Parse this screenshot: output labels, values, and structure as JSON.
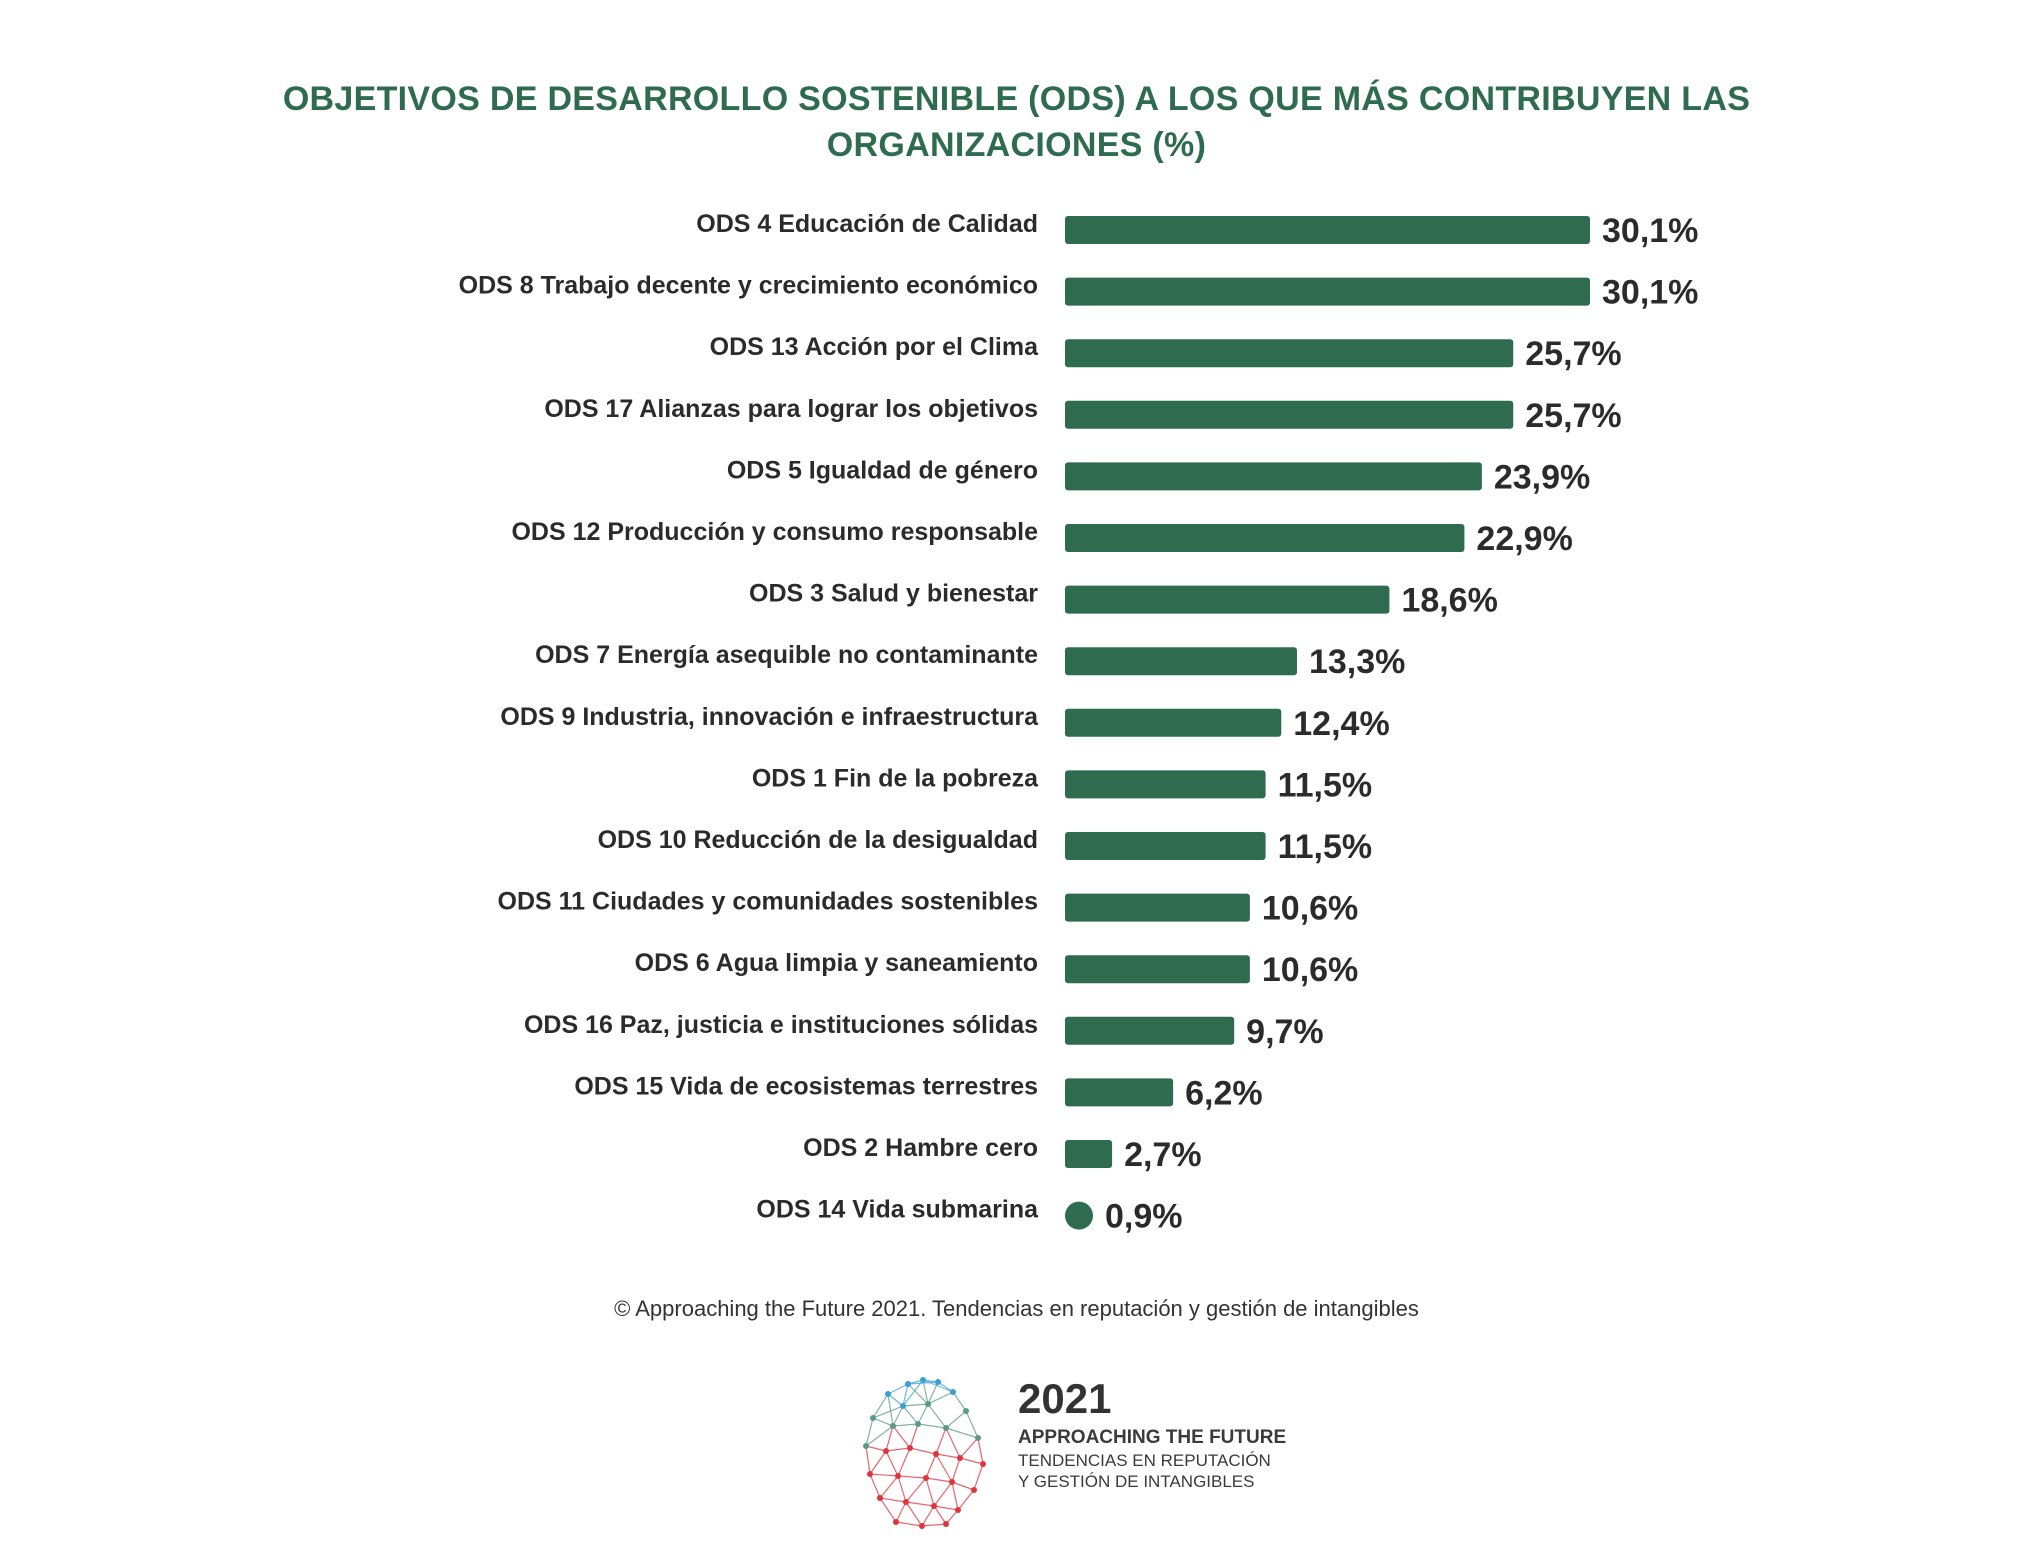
{
  "title_lines": [
    "OBJETIVOS DE DESARROLLO SOSTENIBLE (ODS) A LOS QUE MÁS CONTRIBUYEN LAS",
    "ORGANIZACIONES (%)"
  ],
  "chart_data": {
    "type": "bar",
    "orientation": "horizontal",
    "title": "OBJETIVOS DE DESARROLLO SOSTENIBLE (ODS) A LOS QUE MÁS CONTRIBUYEN LAS ORGANIZACIONES (%)",
    "categories": [
      "ODS 4 Educación de Calidad",
      "ODS 8 Trabajo decente y crecimiento económico",
      "ODS 13 Acción por el Clima",
      "ODS 17 Alianzas para lograr los objetivos",
      "ODS 5 Igualdad de género",
      "ODS 12 Producción y consumo responsable",
      "ODS 3 Salud y bienestar",
      "ODS 7 Energía asequible no contaminante",
      "ODS 9 Industria, innovación e infraestructura",
      "ODS 1 Fin de la pobreza",
      "ODS 10 Reducción de la desigualdad",
      "ODS 11 Ciudades y comunidades sostenibles",
      "ODS 6 Agua limpia y saneamiento",
      "ODS 16 Paz, justicia e instituciones sólidas",
      "ODS 15 Vida de ecosistemas terrestres",
      "ODS 2 Hambre cero",
      "ODS 14 Vida submarina"
    ],
    "values": [
      30.1,
      30.1,
      25.7,
      25.7,
      23.9,
      22.9,
      18.6,
      13.3,
      12.4,
      11.5,
      11.5,
      10.6,
      10.6,
      9.7,
      6.2,
      2.7,
      0.9
    ],
    "value_labels": [
      "30,1%",
      "30,1%",
      "25,7%",
      "25,7%",
      "23,9%",
      "22,9%",
      "18,6%",
      "13,3%",
      "12,4%",
      "11,5%",
      "11,5%",
      "10,6%",
      "10,6%",
      "9,7%",
      "6,2%",
      "2,7%",
      "0,9%"
    ],
    "xlim": [
      0,
      30.1
    ],
    "xlabel": "",
    "ylabel": "",
    "grid": false,
    "legend": "none",
    "bar_color": "#2e6b4f"
  },
  "footer": "© Approaching the Future 2021. Tendencias en reputación y gestión de intangibles",
  "logo": {
    "year": "2021",
    "name": "APPROACHING THE FUTURE",
    "sub_lines": [
      "TENDENCIAS EN REPUTACIÓN",
      "Y GESTIÓN DE INTANGIBLES"
    ],
    "colors": [
      "#3b9fd6",
      "#5a9a86",
      "#e0343c"
    ]
  }
}
